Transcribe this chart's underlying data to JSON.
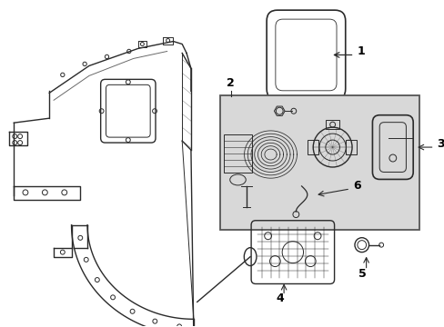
{
  "background_color": "#ffffff",
  "line_color": "#2a2a2a",
  "label_color": "#000000",
  "box_fill": "#e8e8e8",
  "figsize": [
    4.89,
    3.6
  ],
  "dpi": 100
}
